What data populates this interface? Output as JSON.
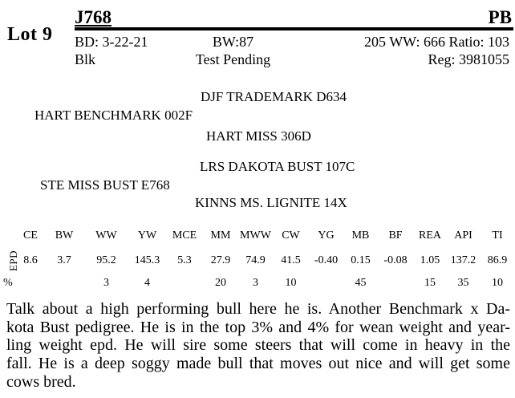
{
  "colors": {
    "ink": "#000000",
    "paper": "#ffffff"
  },
  "lot": {
    "label": "Lot 9"
  },
  "header": {
    "tag": "J768",
    "breed": "PB",
    "birth_date": "BD: 3-22-21",
    "birth_weight": "BW:87",
    "ww_ratio": "205 WW: 666 Ratio: 103",
    "color": "Blk",
    "test_status": "Test Pending",
    "registration": "Reg: 3981055"
  },
  "pedigree": {
    "sire_sire": "DJF TRADEMARK D634",
    "sire": "HART BENCHMARK 002F",
    "sire_dam": "HART MISS 306D",
    "dam_sire": "LRS DAKOTA BUST 107C",
    "dam": "STE MISS BUST E768",
    "dam_dam": "KINNS MS. LIGNITE 14X"
  },
  "epd_table": {
    "row_labels": {
      "epd": "EPD",
      "pct": "%"
    },
    "columns": [
      "CE",
      "BW",
      "WW",
      "YW",
      "MCE",
      "MM",
      "MWW",
      "CW",
      "YG",
      "MB",
      "BF",
      "REA",
      "API",
      "TI"
    ],
    "epd_values": [
      "8.6",
      "3.7",
      "95.2",
      "145.3",
      "5.3",
      "27.9",
      "74.9",
      "41.5",
      "-0.40",
      "0.15",
      "-0.08",
      "1.05",
      "137.2",
      "86.9"
    ],
    "pct_values": [
      "",
      "",
      "3",
      "4",
      "",
      "20",
      "3",
      "10",
      "",
      "45",
      "",
      "15",
      "35",
      "10"
    ]
  },
  "description": {
    "lines": [
      "Talk about a high performing bull here he is.  Another Benchmark x Da-",
      "kota Bust pedigree.  He is in the top 3% and 4% for wean weight and year-",
      "ling weight epd.  He will sire some steers that will come in heavy in the",
      "fall.  He is a deep soggy made bull that moves out nice and will get some",
      "cows bred."
    ]
  }
}
